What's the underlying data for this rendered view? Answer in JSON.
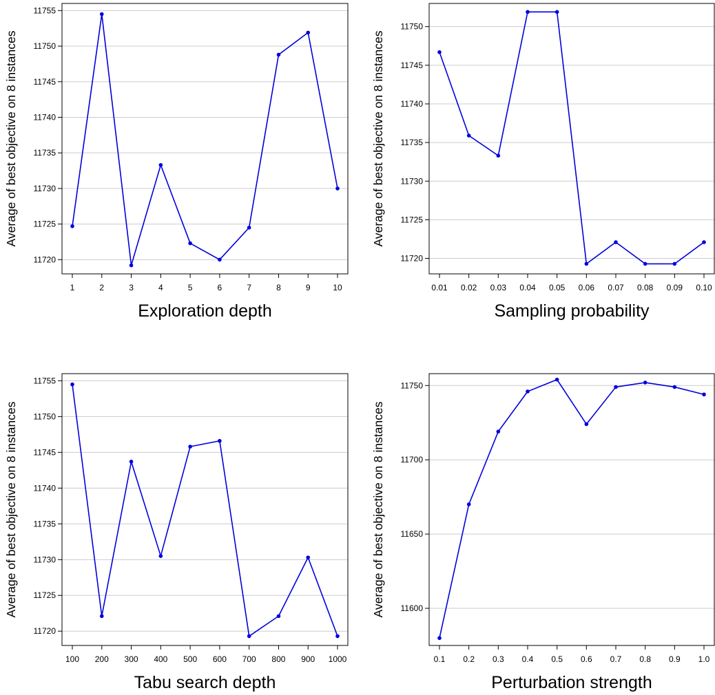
{
  "colors": {
    "series": "#0000dd",
    "grid": "#cccccc",
    "axis": "#000000"
  },
  "chart_data": [
    {
      "type": "line",
      "xlabel": "Exploration depth",
      "ylabel": "Average of best objective on 8 instances",
      "x": [
        "1",
        "2",
        "3",
        "4",
        "5",
        "6",
        "7",
        "8",
        "9",
        "10"
      ],
      "values": [
        11724.7,
        11754.5,
        11719.2,
        11733.3,
        11722.3,
        11720.0,
        11724.5,
        11748.8,
        11751.9,
        11730.0
      ],
      "yticks": [
        "11720",
        "11725",
        "11730",
        "11735",
        "11740",
        "11745",
        "11750",
        "11755"
      ],
      "ylim": [
        11718,
        11756
      ],
      "grid": true
    },
    {
      "type": "line",
      "xlabel": "Sampling probability",
      "ylabel": "Average of best objective on 8 instances",
      "x": [
        "0.01",
        "0.02",
        "0.03",
        "0.04",
        "0.05",
        "0.06",
        "0.07",
        "0.08",
        "0.09",
        "0.10"
      ],
      "values": [
        11746.7,
        11735.9,
        11733.3,
        11751.9,
        11751.9,
        11719.3,
        11722.1,
        11719.3,
        11719.3,
        11722.1
      ],
      "yticks": [
        "11720",
        "11725",
        "11730",
        "11735",
        "11740",
        "11745",
        "11750"
      ],
      "ylim": [
        11718,
        11753
      ],
      "grid": true
    },
    {
      "type": "line",
      "xlabel": "Tabu search depth",
      "ylabel": "Average of best objective on 8 instances",
      "x": [
        "100",
        "200",
        "300",
        "400",
        "500",
        "600",
        "700",
        "800",
        "900",
        "1000"
      ],
      "values": [
        11754.5,
        11722.1,
        11743.7,
        11730.5,
        11745.8,
        11746.6,
        11719.3,
        11722.1,
        11730.3,
        11719.3
      ],
      "yticks": [
        "11720",
        "11725",
        "11730",
        "11735",
        "11740",
        "11745",
        "11750",
        "11755"
      ],
      "ylim": [
        11718,
        11756
      ],
      "grid": true
    },
    {
      "type": "line",
      "xlabel": "Perturbation strength",
      "ylabel": "Average of best objective on 8 instances",
      "x": [
        "0.1",
        "0.2",
        "0.3",
        "0.4",
        "0.5",
        "0.6",
        "0.7",
        "0.8",
        "0.9",
        "1.0"
      ],
      "values": [
        11580,
        11670,
        11719,
        11746,
        11754,
        11724,
        11749,
        11752,
        11749,
        11744
      ],
      "yticks": [
        "11600",
        "11650",
        "11700",
        "11750"
      ],
      "ylim": [
        11575,
        11758
      ],
      "grid": true
    }
  ]
}
